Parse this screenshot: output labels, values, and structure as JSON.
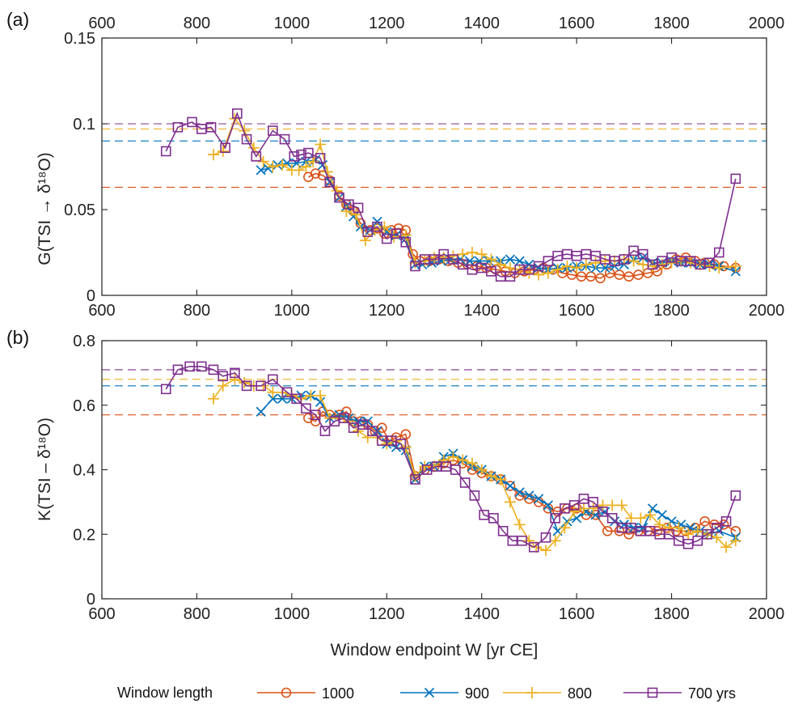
{
  "chart_data": [
    {
      "panel_label": "(a)",
      "type": "line",
      "ylabel": "G(TSI → δ¹⁸O)",
      "xlabel": "",
      "xlim": [
        600,
        2000
      ],
      "ylim": [
        0,
        0.15
      ],
      "xticks": [
        "600",
        "800",
        "1000",
        "1200",
        "1400",
        "1600",
        "1800",
        "2000"
      ],
      "xticks_top": [
        "600",
        "800",
        "1000",
        "1200",
        "1400",
        "1600",
        "1800",
        "2000"
      ],
      "yticks": [
        "0",
        "0.05",
        "0.1",
        "0.15"
      ],
      "reference_lines": [
        {
          "series": "1000",
          "y": 0.063
        },
        {
          "series": "900",
          "y": 0.09
        },
        {
          "series": "800",
          "y": 0.097
        },
        {
          "series": "700 yrs",
          "y": 0.1
        }
      ],
      "series": [
        {
          "name": "1000",
          "color": "#D95319",
          "marker": "circle",
          "x": [
            1035,
            1050,
            1065,
            1080,
            1100,
            1115,
            1130,
            1145,
            1165,
            1180,
            1195,
            1210,
            1225,
            1240,
            1255,
            1270,
            1290,
            1310,
            1330,
            1350,
            1370,
            1390,
            1410,
            1430,
            1450,
            1470,
            1490,
            1510,
            1530,
            1550,
            1570,
            1590,
            1610,
            1630,
            1650,
            1670,
            1690,
            1710,
            1730,
            1750,
            1770,
            1790,
            1810,
            1830,
            1850,
            1870,
            1890,
            1910,
            1935
          ],
          "y": [
            0.069,
            0.071,
            0.07,
            0.067,
            0.058,
            0.053,
            0.049,
            0.042,
            0.038,
            0.039,
            0.036,
            0.038,
            0.039,
            0.038,
            0.024,
            0.02,
            0.02,
            0.021,
            0.02,
            0.019,
            0.018,
            0.017,
            0.016,
            0.015,
            0.014,
            0.013,
            0.014,
            0.015,
            0.016,
            0.015,
            0.013,
            0.012,
            0.011,
            0.011,
            0.01,
            0.013,
            0.012,
            0.011,
            0.012,
            0.013,
            0.014,
            0.018,
            0.021,
            0.022,
            0.02,
            0.019,
            0.018,
            0.017,
            0.016
          ]
        },
        {
          "name": "900",
          "color": "#0072BD",
          "marker": "x",
          "x": [
            935,
            950,
            970,
            990,
            1010,
            1030,
            1050,
            1065,
            1080,
            1100,
            1115,
            1130,
            1145,
            1165,
            1180,
            1200,
            1220,
            1240,
            1260,
            1275,
            1295,
            1315,
            1335,
            1355,
            1375,
            1395,
            1415,
            1440,
            1460,
            1480,
            1500,
            1520,
            1540,
            1560,
            1580,
            1600,
            1620,
            1640,
            1660,
            1680,
            1700,
            1720,
            1740,
            1760,
            1780,
            1800,
            1820,
            1840,
            1860,
            1880,
            1900,
            1935
          ],
          "y": [
            0.073,
            0.074,
            0.076,
            0.077,
            0.077,
            0.078,
            0.079,
            0.076,
            0.066,
            0.057,
            0.052,
            0.046,
            0.04,
            0.038,
            0.043,
            0.037,
            0.035,
            0.033,
            0.018,
            0.018,
            0.019,
            0.02,
            0.021,
            0.021,
            0.02,
            0.02,
            0.02,
            0.02,
            0.021,
            0.02,
            0.018,
            0.016,
            0.015,
            0.016,
            0.016,
            0.017,
            0.017,
            0.016,
            0.016,
            0.017,
            0.018,
            0.021,
            0.022,
            0.019,
            0.019,
            0.02,
            0.019,
            0.019,
            0.018,
            0.018,
            0.017,
            0.014
          ]
        },
        {
          "name": "800",
          "color": "#EDB120",
          "marker": "plus",
          "x": [
            835,
            855,
            880,
            900,
            920,
            940,
            960,
            980,
            1000,
            1015,
            1030,
            1045,
            1060,
            1075,
            1095,
            1115,
            1135,
            1155,
            1175,
            1195,
            1215,
            1240,
            1260,
            1280,
            1300,
            1320,
            1340,
            1360,
            1380,
            1400,
            1420,
            1440,
            1460,
            1480,
            1500,
            1520,
            1540,
            1560,
            1580,
            1600,
            1620,
            1640,
            1660,
            1680,
            1700,
            1720,
            1740,
            1760,
            1780,
            1800,
            1820,
            1840,
            1860,
            1880,
            1900,
            1935
          ],
          "y": [
            0.082,
            0.084,
            0.103,
            0.096,
            0.086,
            0.078,
            0.075,
            0.076,
            0.073,
            0.073,
            0.075,
            0.078,
            0.088,
            0.072,
            0.061,
            0.049,
            0.047,
            0.032,
            0.038,
            0.04,
            0.034,
            0.035,
            0.019,
            0.02,
            0.022,
            0.022,
            0.023,
            0.024,
            0.025,
            0.024,
            0.021,
            0.018,
            0.016,
            0.015,
            0.013,
            0.012,
            0.013,
            0.015,
            0.017,
            0.016,
            0.018,
            0.019,
            0.02,
            0.02,
            0.021,
            0.02,
            0.018,
            0.017,
            0.018,
            0.019,
            0.02,
            0.019,
            0.018,
            0.017,
            0.016,
            0.017
          ]
        },
        {
          "name": "700 yrs",
          "color": "#7E2F8E",
          "marker": "square",
          "x": [
            735,
            760,
            790,
            810,
            830,
            860,
            885,
            905,
            925,
            960,
            985,
            1005,
            1020,
            1035,
            1060,
            1080,
            1100,
            1120,
            1140,
            1160,
            1180,
            1200,
            1220,
            1240,
            1260,
            1280,
            1300,
            1320,
            1340,
            1360,
            1380,
            1400,
            1420,
            1440,
            1460,
            1480,
            1500,
            1520,
            1540,
            1560,
            1580,
            1600,
            1620,
            1640,
            1660,
            1680,
            1700,
            1720,
            1740,
            1760,
            1780,
            1800,
            1820,
            1840,
            1860,
            1880,
            1900,
            1935
          ],
          "y": [
            0.084,
            0.098,
            0.101,
            0.097,
            0.098,
            0.086,
            0.106,
            0.091,
            0.081,
            0.096,
            0.091,
            0.081,
            0.082,
            0.083,
            0.08,
            0.066,
            0.057,
            0.053,
            0.051,
            0.037,
            0.04,
            0.033,
            0.036,
            0.031,
            0.017,
            0.021,
            0.021,
            0.024,
            0.021,
            0.018,
            0.015,
            0.016,
            0.014,
            0.011,
            0.011,
            0.015,
            0.015,
            0.017,
            0.02,
            0.023,
            0.024,
            0.023,
            0.024,
            0.023,
            0.021,
            0.02,
            0.021,
            0.026,
            0.024,
            0.018,
            0.02,
            0.022,
            0.02,
            0.02,
            0.018,
            0.019,
            0.025,
            0.068
          ]
        }
      ]
    },
    {
      "panel_label": "(b)",
      "type": "line",
      "ylabel": "K(TSI – δ¹⁸O)",
      "xlabel": "Window endpoint W [yr CE]",
      "xlim": [
        600,
        2000
      ],
      "ylim": [
        0,
        0.8
      ],
      "xticks": [
        "600",
        "800",
        "1000",
        "1200",
        "1400",
        "1600",
        "1800",
        "2000"
      ],
      "yticks": [
        "0",
        "0.2",
        "0.4",
        "0.6",
        "0.8"
      ],
      "reference_lines": [
        {
          "series": "1000",
          "y": 0.57
        },
        {
          "series": "900",
          "y": 0.66
        },
        {
          "series": "800",
          "y": 0.68
        },
        {
          "series": "700 yrs",
          "y": 0.71
        }
      ],
      "series": [
        {
          "name": "1000",
          "color": "#D95319",
          "marker": "circle",
          "x": [
            1035,
            1050,
            1065,
            1080,
            1100,
            1115,
            1130,
            1145,
            1160,
            1175,
            1190,
            1205,
            1220,
            1240,
            1260,
            1280,
            1300,
            1320,
            1340,
            1360,
            1380,
            1400,
            1420,
            1440,
            1460,
            1480,
            1500,
            1520,
            1540,
            1560,
            1580,
            1600,
            1620,
            1640,
            1665,
            1690,
            1710,
            1730,
            1750,
            1770,
            1790,
            1810,
            1830,
            1850,
            1870,
            1890,
            1910,
            1935
          ],
          "y": [
            0.56,
            0.55,
            0.58,
            0.57,
            0.57,
            0.58,
            0.55,
            0.55,
            0.54,
            0.52,
            0.53,
            0.49,
            0.5,
            0.51,
            0.38,
            0.4,
            0.41,
            0.42,
            0.43,
            0.42,
            0.4,
            0.39,
            0.38,
            0.37,
            0.35,
            0.32,
            0.31,
            0.3,
            0.28,
            0.27,
            0.28,
            0.28,
            0.26,
            0.26,
            0.21,
            0.21,
            0.2,
            0.21,
            0.21,
            0.21,
            0.22,
            0.21,
            0.21,
            0.22,
            0.24,
            0.23,
            0.23,
            0.21
          ]
        },
        {
          "name": "900",
          "color": "#0072BD",
          "marker": "x",
          "x": [
            935,
            960,
            980,
            1000,
            1020,
            1040,
            1060,
            1080,
            1100,
            1120,
            1140,
            1160,
            1180,
            1200,
            1220,
            1240,
            1260,
            1280,
            1300,
            1320,
            1340,
            1360,
            1380,
            1400,
            1420,
            1440,
            1460,
            1480,
            1500,
            1520,
            1540,
            1560,
            1580,
            1600,
            1620,
            1640,
            1660,
            1680,
            1700,
            1720,
            1740,
            1760,
            1780,
            1800,
            1820,
            1840,
            1860,
            1880,
            1900,
            1935
          ],
          "y": [
            0.58,
            0.62,
            0.62,
            0.62,
            0.63,
            0.63,
            0.61,
            0.56,
            0.57,
            0.56,
            0.55,
            0.55,
            0.52,
            0.48,
            0.47,
            0.46,
            0.37,
            0.41,
            0.41,
            0.44,
            0.45,
            0.43,
            0.41,
            0.4,
            0.38,
            0.37,
            0.35,
            0.33,
            0.32,
            0.31,
            0.29,
            0.21,
            0.24,
            0.25,
            0.27,
            0.26,
            0.27,
            0.24,
            0.23,
            0.22,
            0.22,
            0.28,
            0.26,
            0.24,
            0.23,
            0.22,
            0.21,
            0.2,
            0.21,
            0.19
          ]
        },
        {
          "name": "800",
          "color": "#EDB120",
          "marker": "plus",
          "x": [
            835,
            855,
            880,
            900,
            920,
            940,
            960,
            980,
            1000,
            1020,
            1040,
            1060,
            1080,
            1100,
            1120,
            1140,
            1160,
            1180,
            1200,
            1220,
            1240,
            1260,
            1280,
            1300,
            1320,
            1340,
            1360,
            1380,
            1400,
            1420,
            1440,
            1460,
            1480,
            1500,
            1515,
            1535,
            1555,
            1575,
            1595,
            1615,
            1635,
            1655,
            1675,
            1695,
            1715,
            1735,
            1755,
            1775,
            1795,
            1815,
            1835,
            1855,
            1875,
            1895,
            1915,
            1935
          ],
          "y": [
            0.62,
            0.66,
            0.68,
            0.67,
            0.66,
            0.66,
            0.64,
            0.64,
            0.63,
            0.62,
            0.63,
            0.63,
            0.56,
            0.56,
            0.55,
            0.52,
            0.5,
            0.5,
            0.48,
            0.49,
            0.47,
            0.38,
            0.41,
            0.41,
            0.43,
            0.44,
            0.43,
            0.42,
            0.4,
            0.38,
            0.37,
            0.3,
            0.23,
            0.18,
            0.16,
            0.15,
            0.18,
            0.22,
            0.27,
            0.28,
            0.28,
            0.29,
            0.29,
            0.29,
            0.25,
            0.25,
            0.26,
            0.23,
            0.22,
            0.22,
            0.2,
            0.21,
            0.2,
            0.19,
            0.16,
            0.18
          ]
        },
        {
          "name": "700 yrs",
          "color": "#7E2F8E",
          "marker": "square",
          "x": [
            735,
            760,
            785,
            810,
            835,
            855,
            880,
            905,
            935,
            960,
            990,
            1010,
            1030,
            1050,
            1070,
            1090,
            1110,
            1130,
            1150,
            1170,
            1190,
            1210,
            1230,
            1260,
            1285,
            1305,
            1325,
            1345,
            1365,
            1385,
            1405,
            1425,
            1445,
            1465,
            1485,
            1510,
            1535,
            1555,
            1575,
            1595,
            1615,
            1635,
            1655,
            1675,
            1695,
            1715,
            1735,
            1755,
            1775,
            1795,
            1815,
            1835,
            1855,
            1875,
            1895,
            1915,
            1935
          ],
          "y": [
            0.65,
            0.71,
            0.72,
            0.72,
            0.71,
            0.69,
            0.7,
            0.66,
            0.66,
            0.68,
            0.64,
            0.62,
            0.59,
            0.57,
            0.52,
            0.55,
            0.56,
            0.53,
            0.54,
            0.52,
            0.49,
            0.49,
            0.48,
            0.37,
            0.4,
            0.41,
            0.41,
            0.4,
            0.36,
            0.32,
            0.26,
            0.25,
            0.21,
            0.18,
            0.18,
            0.16,
            0.19,
            0.25,
            0.28,
            0.29,
            0.31,
            0.3,
            0.27,
            0.25,
            0.22,
            0.22,
            0.21,
            0.21,
            0.2,
            0.2,
            0.18,
            0.17,
            0.18,
            0.2,
            0.22,
            0.24,
            0.32
          ]
        }
      ]
    }
  ],
  "legend": {
    "title": "Window length",
    "entries": [
      {
        "label": "1000",
        "color": "#D95319",
        "marker": "circle"
      },
      {
        "label": "900",
        "color": "#0072BD",
        "marker": "x"
      },
      {
        "label": "800",
        "color": "#EDB120",
        "marker": "plus"
      },
      {
        "label": "700 yrs",
        "color": "#7E2F8E",
        "marker": "square"
      }
    ]
  }
}
